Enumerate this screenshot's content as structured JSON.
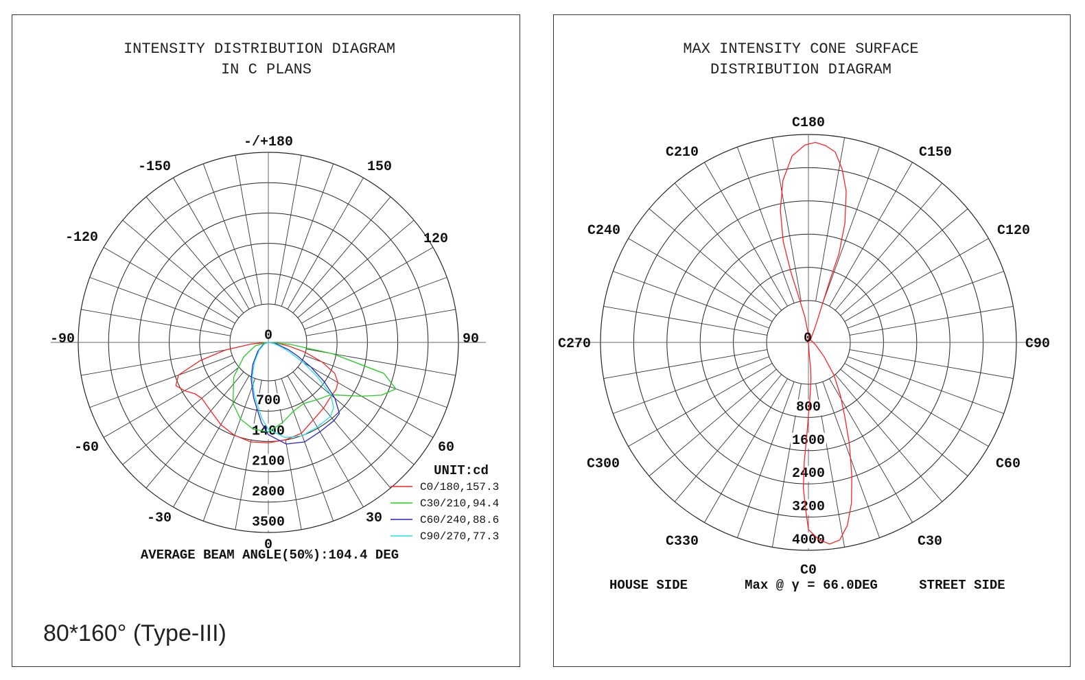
{
  "left": {
    "title_line1": "INTENSITY DISTRIBUTION DIAGRAM",
    "title_line2": "IN C PLANS",
    "angle_labels": [
      "-/+180",
      "150",
      "120",
      "90",
      "60",
      "30",
      "0",
      "-30",
      "-60",
      "-90",
      "-120",
      "-150"
    ],
    "center_label": "0",
    "unit_label": "UNIT:cd",
    "footer": "AVERAGE BEAM ANGLE(50%):104.4 DEG",
    "note": "80*160° (Type-III)"
  },
  "right": {
    "title_line1": "MAX INTENSITY CONE SURFACE",
    "title_line2": "DISTRIBUTION DIAGRAM",
    "c_labels": [
      "C180",
      "C150",
      "C120",
      "C90",
      "C60",
      "C30",
      "C0",
      "C330",
      "C300",
      "C270",
      "C240",
      "C210"
    ],
    "center_label": "0",
    "footer_left": "HOUSE SIDE",
    "footer_mid": "Max @ γ = 66.0DEG",
    "footer_right": "STREET SIDE"
  },
  "chart_data": [
    {
      "type": "polar",
      "title": "INTENSITY DISTRIBUTION DIAGRAM IN C PLANS",
      "unit": "cd",
      "rmax": 3500,
      "radial_ticks": [
        700,
        1400,
        2100,
        2800,
        3500
      ],
      "angle_ticks": [
        "-/+180",
        "150",
        "120",
        "90",
        "60",
        "30",
        "0",
        "-30",
        "-60",
        "-90",
        "-120",
        "-150"
      ],
      "legend_position": "bottom-right",
      "beam_angle": "104.4 DEG",
      "series": [
        {
          "name": "C0/180,157.3",
          "color": "#ff2020",
          "points": [
            [
              -90,
              0
            ],
            [
              -85,
              300
            ],
            [
              -80,
              800
            ],
            [
              -75,
              1300
            ],
            [
              -70,
              1760
            ],
            [
              -65,
              1880
            ],
            [
              -60,
              1780
            ],
            [
              -55,
              1650
            ],
            [
              -50,
              1600
            ],
            [
              -40,
              1650
            ],
            [
              -30,
              1750
            ],
            [
              -20,
              1820
            ],
            [
              -10,
              1860
            ],
            [
              0,
              1850
            ],
            [
              10,
              1820
            ],
            [
              20,
              1780
            ],
            [
              30,
              1650
            ],
            [
              40,
              1580
            ],
            [
              50,
              1520
            ],
            [
              55,
              1520
            ],
            [
              60,
              1480
            ],
            [
              65,
              1350
            ],
            [
              70,
              1050
            ],
            [
              75,
              700
            ],
            [
              80,
              380
            ],
            [
              85,
              150
            ],
            [
              90,
              0
            ]
          ]
        },
        {
          "name": "C30/210,94.4",
          "color": "#22cc22",
          "points": [
            [
              -90,
              0
            ],
            [
              -85,
              50
            ],
            [
              -75,
              250
            ],
            [
              -60,
              520
            ],
            [
              -45,
              900
            ],
            [
              -30,
              1300
            ],
            [
              -20,
              1500
            ],
            [
              -10,
              1620
            ],
            [
              0,
              1650
            ],
            [
              10,
              1500
            ],
            [
              20,
              1350
            ],
            [
              30,
              1300
            ],
            [
              40,
              1380
            ],
            [
              50,
              1500
            ],
            [
              55,
              1700
            ],
            [
              60,
              1980
            ],
            [
              65,
              2300
            ],
            [
              70,
              2500
            ],
            [
              75,
              2200
            ],
            [
              80,
              1200
            ],
            [
              85,
              400
            ],
            [
              90,
              0
            ]
          ]
        },
        {
          "name": "C60/240,88.6",
          "color": "#2222cc",
          "points": [
            [
              -90,
              0
            ],
            [
              -70,
              100
            ],
            [
              -50,
              250
            ],
            [
              -35,
              500
            ],
            [
              -25,
              750
            ],
            [
              -15,
              1050
            ],
            [
              -5,
              1480
            ],
            [
              0,
              1700
            ],
            [
              10,
              1900
            ],
            [
              20,
              1950
            ],
            [
              30,
              1900
            ],
            [
              40,
              1880
            ],
            [
              45,
              1850
            ],
            [
              50,
              1600
            ],
            [
              55,
              1250
            ],
            [
              60,
              900
            ],
            [
              65,
              600
            ],
            [
              70,
              400
            ],
            [
              80,
              150
            ],
            [
              90,
              0
            ]
          ]
        },
        {
          "name": "C90/270,77.3",
          "color": "#22dddd",
          "points": [
            [
              -90,
              0
            ],
            [
              -70,
              80
            ],
            [
              -50,
              220
            ],
            [
              -35,
              450
            ],
            [
              -25,
              700
            ],
            [
              -15,
              1000
            ],
            [
              -5,
              1400
            ],
            [
              0,
              1600
            ],
            [
              10,
              1780
            ],
            [
              20,
              1830
            ],
            [
              30,
              1800
            ],
            [
              40,
              1780
            ],
            [
              45,
              1700
            ],
            [
              50,
              1500
            ],
            [
              55,
              1100
            ],
            [
              60,
              750
            ],
            [
              65,
              450
            ],
            [
              70,
              280
            ],
            [
              80,
              100
            ],
            [
              90,
              0
            ]
          ]
        }
      ]
    },
    {
      "type": "polar",
      "title": "MAX INTENSITY CONE SURFACE DISTRIBUTION DIAGRAM",
      "rmax": 4000,
      "radial_ticks": [
        800,
        1600,
        2400,
        3200,
        4000
      ],
      "angle_ticks": [
        "C180",
        "C150",
        "C120",
        "C90",
        "C60",
        "C30",
        "C0",
        "C330",
        "C300",
        "C270",
        "C240",
        "C210"
      ],
      "max_gamma": "66.0DEG",
      "series": [
        {
          "name": "",
          "color": "#ff2020",
          "points": [
            [
              0,
              0
            ],
            [
              4,
              300
            ],
            [
              5,
              500
            ],
            [
              4,
              700
            ],
            [
              2,
              1000
            ],
            [
              0,
              1400
            ],
            [
              -1,
              1800
            ],
            [
              -2,
              2300
            ],
            [
              -2,
              2800
            ],
            [
              -1,
              3200
            ],
            [
              0,
              3600
            ],
            [
              3,
              3800
            ],
            [
              6,
              3900
            ],
            [
              9,
              3850
            ],
            [
              12,
              3600
            ],
            [
              15,
              3200
            ],
            [
              18,
              2700
            ],
            [
              22,
              2100
            ],
            [
              26,
              1600
            ],
            [
              31,
              1200
            ],
            [
              38,
              800
            ],
            [
              48,
              400
            ],
            [
              70,
              150
            ],
            [
              100,
              80
            ],
            [
              140,
              60
            ],
            [
              150,
              120
            ],
            [
              155,
              250
            ],
            [
              158,
              450
            ],
            [
              160,
              800
            ],
            [
              161,
              1300
            ],
            [
              161,
              1800
            ],
            [
              163,
              2400
            ],
            [
              166,
              3000
            ],
            [
              169,
              3400
            ],
            [
              172,
              3700
            ],
            [
              175,
              3800
            ],
            [
              178,
              3850
            ],
            [
              181,
              3800
            ],
            [
              185,
              3600
            ],
            [
              189,
              3150
            ],
            [
              192,
              2600
            ],
            [
              194,
              2000
            ],
            [
              194,
              1400
            ],
            [
              192,
              900
            ],
            [
              188,
              500
            ],
            [
              183,
              200
            ],
            [
              180,
              80
            ],
            [
              270,
              20
            ],
            [
              0,
              0
            ]
          ]
        }
      ]
    }
  ]
}
